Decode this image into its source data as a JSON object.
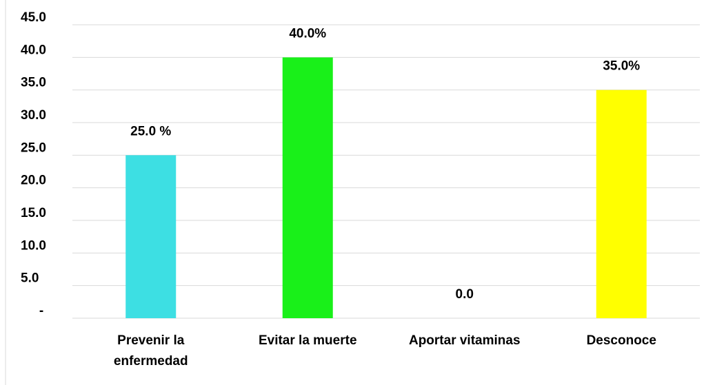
{
  "chart_data": {
    "type": "bar",
    "categories": [
      "Prevenir la enfermedad",
      "Evitar la muerte",
      "Aportar vitaminas",
      "Desconoce"
    ],
    "values": [
      25,
      40,
      0,
      35
    ],
    "value_labels": [
      "25.0 %",
      "40.0%",
      "0.0",
      "35.0%"
    ],
    "colors": [
      "#3ddfe3",
      "#19f019",
      null,
      "#ffff00"
    ],
    "ylim": [
      0,
      45
    ],
    "yticks": [
      {
        "value": 0,
        "label": "-"
      },
      {
        "value": 5,
        "label": "5.0"
      },
      {
        "value": 10,
        "label": "10.0"
      },
      {
        "value": 15,
        "label": "15.0"
      },
      {
        "value": 20,
        "label": "20.0"
      },
      {
        "value": 25,
        "label": "25.0"
      },
      {
        "value": 30,
        "label": "30.0"
      },
      {
        "value": 35,
        "label": "35.0"
      },
      {
        "value": 40,
        "label": "40.0"
      },
      {
        "value": 45,
        "label": "45.0"
      }
    ],
    "grid": true
  }
}
